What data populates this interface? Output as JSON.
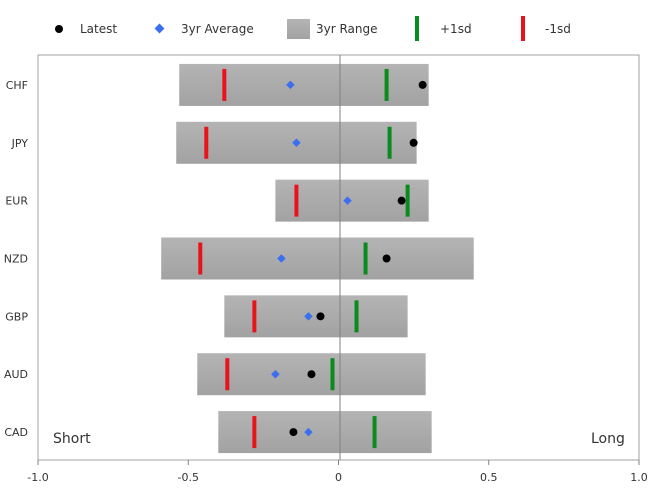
{
  "chart_data": {
    "type": "range-bar",
    "orientation": "horizontal",
    "categories": [
      "CHF",
      "JPY",
      "EUR",
      "NZD",
      "GBP",
      "AUD",
      "CAD"
    ],
    "xlim": [
      -1.0,
      1.0
    ],
    "x_ticks": [
      -1.0,
      -0.5,
      0.0,
      0.5,
      1.0
    ],
    "x_tick_labels": [
      "-1.0",
      "-0.5",
      "0",
      "0.5",
      "1.0"
    ],
    "legend_position": "top",
    "legend": {
      "latest": "Latest",
      "avg": "3yr Average",
      "range": "3yr Range",
      "plus1sd": "+1sd",
      "minus1sd": "-1sd"
    },
    "annotations": {
      "left": "Short",
      "right": "Long"
    },
    "series": {
      "range_min": [
        -0.53,
        -0.54,
        -0.21,
        -0.59,
        -0.38,
        -0.47,
        -0.4
      ],
      "range_max": [
        0.3,
        0.26,
        0.3,
        0.45,
        0.23,
        0.29,
        0.31
      ],
      "latest": [
        0.28,
        0.25,
        0.21,
        0.16,
        -0.06,
        -0.09,
        -0.15
      ],
      "avg_3yr": [
        -0.16,
        -0.14,
        0.03,
        -0.19,
        -0.1,
        -0.21,
        -0.1
      ],
      "plus_1sd": [
        0.16,
        0.17,
        0.23,
        0.09,
        0.06,
        -0.02,
        0.12
      ],
      "minus_1sd": [
        -0.38,
        -0.44,
        -0.14,
        -0.46,
        -0.28,
        -0.37,
        -0.28
      ]
    },
    "colors": {
      "range": "#a6a6a6",
      "latest": "#000000",
      "avg": "#3b6ff0",
      "plus1sd": "#0b8a1e",
      "minus1sd": "#e8141b",
      "zero_line": "#808080",
      "frame": "#a0a0a0"
    }
  }
}
